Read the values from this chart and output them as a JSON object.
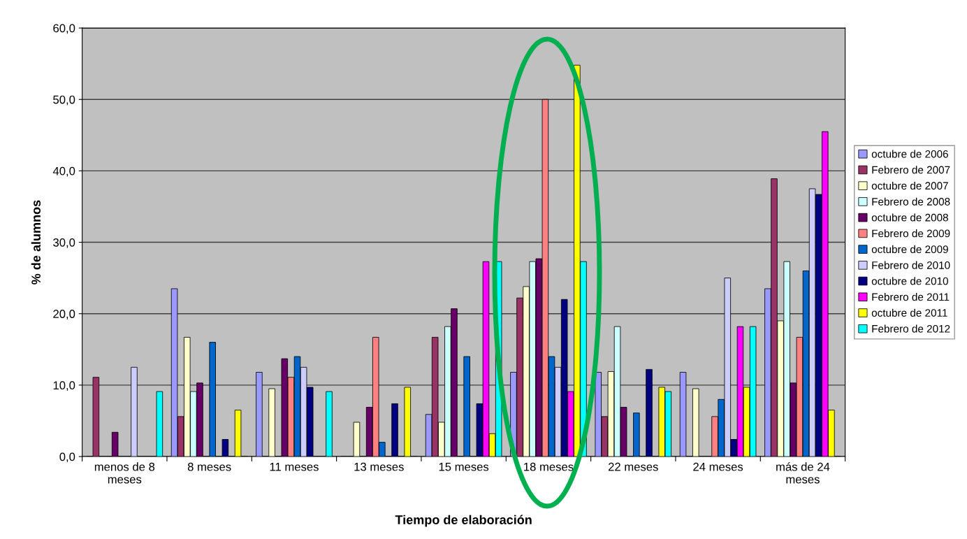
{
  "chart_data": {
    "type": "bar",
    "xlabel": "Tiempo de elaboración",
    "ylabel": "% de alumnos",
    "categories": [
      "menos de 8\nmeses",
      "8 meses",
      "11 meses",
      "13 meses",
      "15 meses",
      "18 meses",
      "22 meses",
      "24 meses",
      "más de 24\nmeses"
    ],
    "series": [
      {
        "name": "octubre de 2006",
        "color": "#9999ff",
        "values": [
          0,
          23.5,
          11.8,
          0,
          5.9,
          11.8,
          11.8,
          11.8,
          23.5
        ]
      },
      {
        "name": "Febrero de 2007",
        "color": "#993366",
        "values": [
          11.1,
          5.6,
          0,
          0,
          16.7,
          22.2,
          5.6,
          0,
          38.9
        ]
      },
      {
        "name": "octubre de 2007",
        "color": "#ffffcc",
        "values": [
          0,
          16.7,
          9.5,
          4.8,
          4.8,
          23.8,
          11.9,
          9.5,
          19.0
        ]
      },
      {
        "name": "Febrero de 2008",
        "color": "#ccffff",
        "values": [
          0,
          9.1,
          0,
          0,
          18.2,
          27.3,
          18.2,
          0,
          27.3
        ]
      },
      {
        "name": "octubre de 2008",
        "color": "#660066",
        "values": [
          3.4,
          10.3,
          13.7,
          6.9,
          20.7,
          27.7,
          6.9,
          0,
          10.3
        ]
      },
      {
        "name": "Febrero de 2009",
        "color": "#ff8080",
        "values": [
          0,
          0,
          11.1,
          16.7,
          0,
          50.0,
          0,
          5.6,
          16.7
        ]
      },
      {
        "name": "octubre de 2009",
        "color": "#0066cc",
        "values": [
          0,
          16.0,
          14.0,
          2.0,
          14.0,
          14.0,
          6.1,
          8.0,
          26.0
        ]
      },
      {
        "name": "Febrero de 2010",
        "color": "#ccccff",
        "values": [
          12.5,
          0,
          12.5,
          0,
          0,
          12.5,
          0,
          25.0,
          37.5
        ]
      },
      {
        "name": "octubre de 2010",
        "color": "#000080",
        "values": [
          0,
          2.4,
          9.7,
          7.4,
          7.4,
          22.0,
          12.2,
          2.4,
          36.7
        ]
      },
      {
        "name": "Febrero de 2011",
        "color": "#ff00ff",
        "values": [
          0,
          0,
          0,
          0,
          27.3,
          9.1,
          0,
          18.2,
          45.5
        ]
      },
      {
        "name": "octubre de 2011",
        "color": "#ffff00",
        "values": [
          0,
          6.5,
          0,
          9.7,
          3.2,
          54.8,
          9.7,
          9.7,
          6.5
        ]
      },
      {
        "name": "Febrero de 2012",
        "color": "#00ffff",
        "values": [
          9.1,
          0,
          9.1,
          0,
          27.3,
          27.3,
          9.1,
          18.2,
          0
        ]
      }
    ],
    "ylim": [
      0,
      60
    ],
    "yticks": [
      {
        "value": 0,
        "label": "0,0"
      },
      {
        "value": 10,
        "label": "10,0"
      },
      {
        "value": 20,
        "label": "20,0"
      },
      {
        "value": 30,
        "label": "30,0"
      },
      {
        "value": 40,
        "label": "40,0"
      },
      {
        "value": 50,
        "label": "50,0"
      },
      {
        "value": 60,
        "label": "60,0"
      }
    ],
    "grid": "y",
    "legend": "right"
  }
}
